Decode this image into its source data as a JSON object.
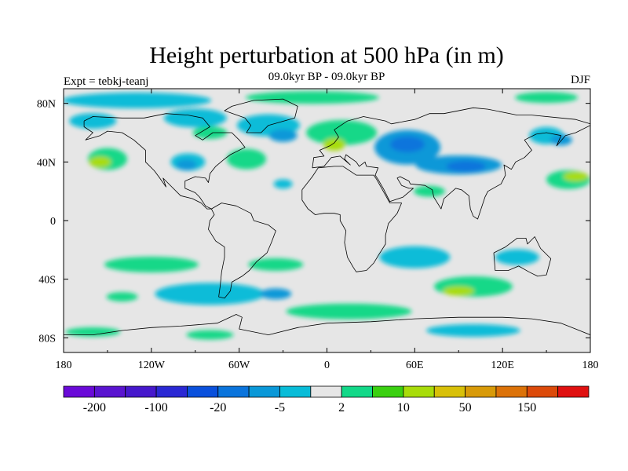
{
  "title": "Height perturbation at 500 hPa (in m)",
  "subtitle": "09.0kyr BP - 09.0kyr BP",
  "left_label": "Expt = tebkj-teanj",
  "right_label": "DJF",
  "x_ticks": [
    {
      "lon": -180,
      "label": "180"
    },
    {
      "lon": -120,
      "label": "120W"
    },
    {
      "lon": -60,
      "label": "60W"
    },
    {
      "lon": 0,
      "label": "0"
    },
    {
      "lon": 60,
      "label": "60E"
    },
    {
      "lon": 120,
      "label": "120E"
    },
    {
      "lon": 180,
      "label": "180"
    }
  ],
  "y_ticks": [
    {
      "lat": 80,
      "label": "80N"
    },
    {
      "lat": 40,
      "label": "40N"
    },
    {
      "lat": 0,
      "label": "0"
    },
    {
      "lat": -40,
      "label": "40S"
    },
    {
      "lat": -80,
      "label": "80S"
    }
  ],
  "colorbar": {
    "colors": [
      "#6a0ad8",
      "#5a14d0",
      "#4618cc",
      "#2a28d4",
      "#0a50dc",
      "#0a74dc",
      "#0a98d8",
      "#08bcd8",
      "#e6e6e6",
      "#12d888",
      "#3ad010",
      "#a8dc0a",
      "#d8c008",
      "#d89a08",
      "#dc7208",
      "#dc4a0a",
      "#e01010"
    ],
    "labels": [
      {
        "after_box": 1,
        "text": "-200"
      },
      {
        "after_box": 3,
        "text": "-100"
      },
      {
        "after_box": 5,
        "text": "-20"
      },
      {
        "after_box": 7,
        "text": "-5"
      },
      {
        "after_box": 9,
        "text": "2"
      },
      {
        "after_box": 11,
        "text": "10"
      },
      {
        "after_box": 13,
        "text": "50"
      },
      {
        "after_box": 15,
        "text": "150"
      }
    ]
  },
  "colors": {
    "neutral": "#e6e6e6",
    "neg_light": "#08bcd8",
    "neg_mid": "#0a98d8",
    "neg_dark": "#0a74dc",
    "pos_light": "#12d888",
    "pos_mid": "#3ad010",
    "pos_strong": "#a8dc0a"
  },
  "chart_data": {
    "type": "heatmap",
    "title": "Height perturbation at 500 hPa (in m)",
    "subtitle": "09.0kyr BP - 09.0kyr BP",
    "xlim": [
      -180,
      180
    ],
    "ylim": [
      -90,
      90
    ],
    "legend_position": "bottom",
    "contour_levels": [
      -200,
      -150,
      -100,
      -50,
      -20,
      -10,
      -5,
      -2,
      2,
      5,
      10,
      20,
      50,
      100,
      150,
      200
    ],
    "field_patches": [
      {
        "lon": -130,
        "lat": 82,
        "value": -3
      },
      {
        "lon": -10,
        "lat": 84,
        "value": 3
      },
      {
        "lon": 150,
        "lat": 84,
        "value": 3
      },
      {
        "lon": -160,
        "lat": 68,
        "value": -3
      },
      {
        "lon": -90,
        "lat": 70,
        "value": -3
      },
      {
        "lon": -40,
        "lat": 65,
        "value": -3
      },
      {
        "lon": -30,
        "lat": 58,
        "value": -8
      },
      {
        "lon": -80,
        "lat": 60,
        "value": 3
      },
      {
        "lon": 10,
        "lat": 60,
        "value": 3
      },
      {
        "lon": 5,
        "lat": 52,
        "value": 8
      },
      {
        "lon": 55,
        "lat": 50,
        "value": -8
      },
      {
        "lon": 55,
        "lat": 52,
        "value": -18
      },
      {
        "lon": 90,
        "lat": 38,
        "value": -8
      },
      {
        "lon": 95,
        "lat": 37,
        "value": -18
      },
      {
        "lon": 150,
        "lat": 58,
        "value": -3
      },
      {
        "lon": 160,
        "lat": 55,
        "value": -8
      },
      {
        "lon": -150,
        "lat": 42,
        "value": 3
      },
      {
        "lon": -155,
        "lat": 40,
        "value": 8
      },
      {
        "lon": -55,
        "lat": 42,
        "value": 3
      },
      {
        "lon": -95,
        "lat": 40,
        "value": -3
      },
      {
        "lon": -96,
        "lat": 38,
        "value": -8
      },
      {
        "lon": 165,
        "lat": 28,
        "value": 3
      },
      {
        "lon": 170,
        "lat": 30,
        "value": 8
      },
      {
        "lon": 70,
        "lat": 20,
        "value": 3
      },
      {
        "lon": -30,
        "lat": 25,
        "value": -3
      },
      {
        "lon": 60,
        "lat": -25,
        "value": -3
      },
      {
        "lon": 130,
        "lat": -25,
        "value": -3
      },
      {
        "lon": -120,
        "lat": -30,
        "value": 3
      },
      {
        "lon": -35,
        "lat": -30,
        "value": 3
      },
      {
        "lon": -80,
        "lat": -50,
        "value": -3
      },
      {
        "lon": -35,
        "lat": -50,
        "value": -8
      },
      {
        "lon": -140,
        "lat": -52,
        "value": 3
      },
      {
        "lon": 100,
        "lat": -45,
        "value": 3
      },
      {
        "lon": 90,
        "lat": -48,
        "value": 8
      },
      {
        "lon": 15,
        "lat": -62,
        "value": 3
      },
      {
        "lon": 100,
        "lat": -75,
        "value": -3
      },
      {
        "lon": -160,
        "lat": -76,
        "value": 3
      },
      {
        "lon": -80,
        "lat": -78,
        "value": 3
      }
    ]
  }
}
